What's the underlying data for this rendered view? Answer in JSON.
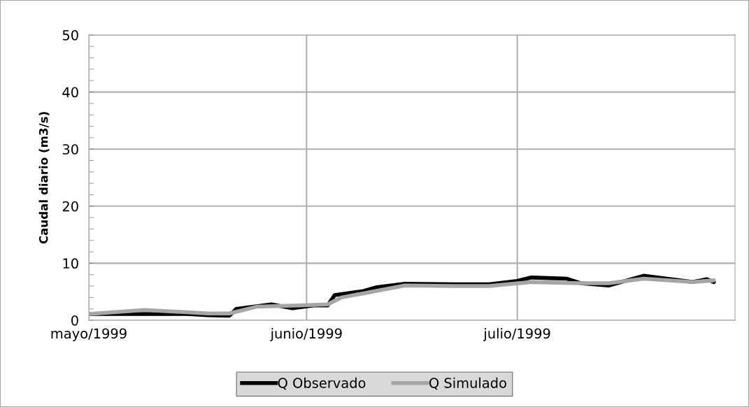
{
  "chart_data": {
    "type": "line",
    "ylabel": "Caudal diario (m3/s)",
    "xlim": [
      "1999-05-01",
      "1999-08-01"
    ],
    "xticks": [
      {
        "value": "1999-05-01",
        "label": "mayo/1999"
      },
      {
        "value": "1999-06-01",
        "label": "junio/1999"
      },
      {
        "value": "1999-07-01",
        "label": "julio/1999"
      }
    ],
    "ylim": [
      0,
      50
    ],
    "yticks": [
      0,
      10,
      20,
      30,
      40,
      50
    ],
    "grid": true,
    "legend": "bottom",
    "marker": "none",
    "line_style": "solid",
    "series": [
      {
        "name": "Q Observado",
        "color": "#000000",
        "x": [
          "1999-05-01",
          "1999-05-08",
          "1999-05-15",
          "1999-05-18",
          "1999-05-21",
          "1999-05-22",
          "1999-05-27",
          "1999-05-30",
          "1999-06-02",
          "1999-06-04",
          "1999-06-05",
          "1999-06-09",
          "1999-06-11",
          "1999-06-15",
          "1999-06-22",
          "1999-06-27",
          "1999-07-01",
          "1999-07-03",
          "1999-07-08",
          "1999-07-10",
          "1999-07-14",
          "1999-07-19",
          "1999-07-26",
          "1999-07-28",
          "1999-07-29"
        ],
        "values": [
          1.1,
          1.1,
          1.1,
          0.9,
          0.8,
          2.0,
          2.8,
          2.1,
          2.6,
          2.6,
          4.4,
          5.1,
          5.8,
          6.4,
          6.3,
          6.3,
          6.9,
          7.5,
          7.3,
          6.5,
          6.1,
          7.8,
          6.7,
          7.2,
          6.7
        ]
      },
      {
        "name": "Q Simulado",
        "color": "#a6a6a6",
        "x": [
          "1999-05-01",
          "1999-05-09",
          "1999-05-18",
          "1999-05-21",
          "1999-05-25",
          "1999-05-31",
          "1999-06-04",
          "1999-06-06",
          "1999-06-09",
          "1999-06-15",
          "1999-06-22",
          "1999-06-27",
          "1999-07-02",
          "1999-07-03",
          "1999-07-10",
          "1999-07-14",
          "1999-07-19",
          "1999-07-26",
          "1999-07-29"
        ],
        "values": [
          1.1,
          1.8,
          1.2,
          1.2,
          2.4,
          2.6,
          2.8,
          4.0,
          4.7,
          6.1,
          6.0,
          6.0,
          6.6,
          6.7,
          6.5,
          6.5,
          7.3,
          6.7,
          7.0
        ]
      }
    ]
  }
}
